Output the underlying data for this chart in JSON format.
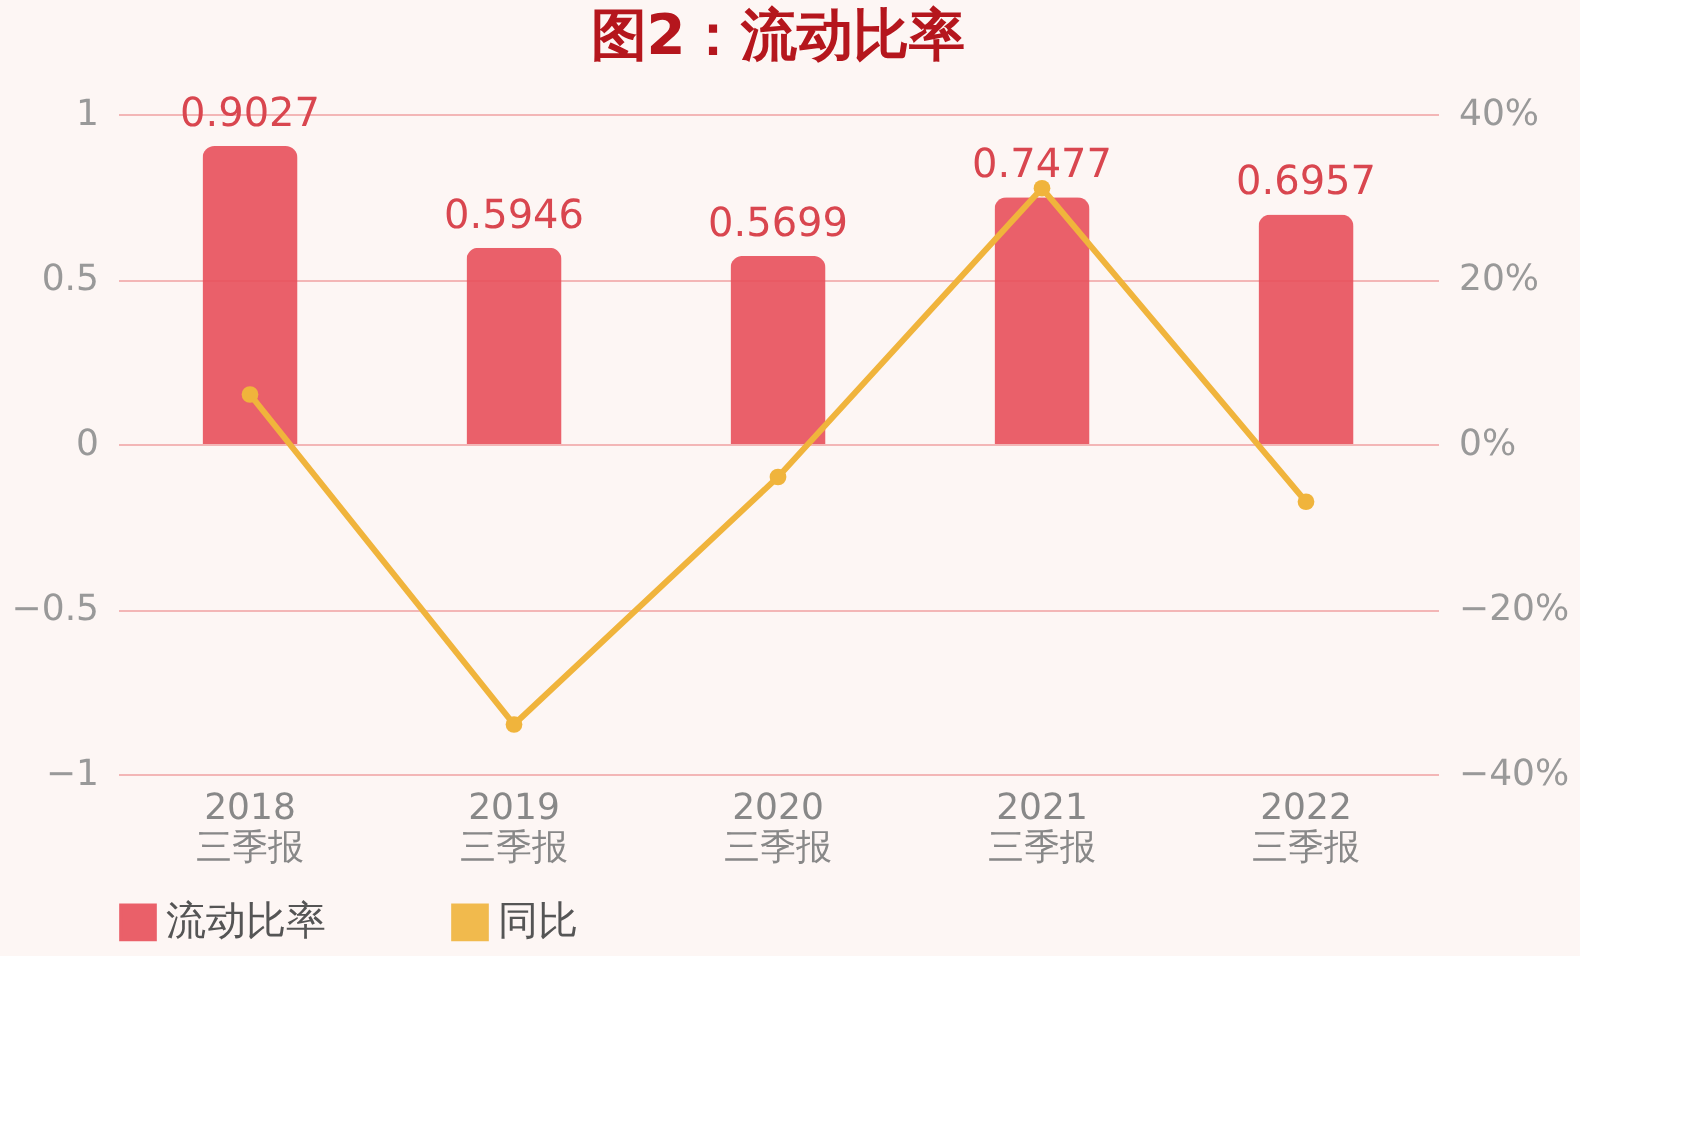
{
  "chart_data": {
    "type": "bar",
    "title": "图2：流动比率",
    "categories": [
      "2018\n三季报",
      "2019\n三季报",
      "2020\n三季报",
      "2021\n三季报",
      "2022\n三季报"
    ],
    "series": [
      {
        "name": "流动比率",
        "color": "#e8505b",
        "values": [
          0.9027,
          0.5946,
          0.5699,
          0.7477,
          0.6957
        ],
        "value_labels": [
          "0.9027",
          "0.5946",
          "0.5699",
          "0.7477",
          "0.6957"
        ]
      },
      {
        "name": "同比",
        "type": "line",
        "axis": "y2",
        "color": "#f0b43c",
        "values": [
          6,
          -34,
          -4,
          31,
          -7
        ]
      }
    ],
    "ylim": [
      -1,
      1
    ],
    "yticks": [
      {
        "value": -1,
        "label": "−1"
      },
      {
        "value": -0.5,
        "label": "−0.5"
      },
      0,
      0.5,
      1
    ],
    "y2lim": [
      -40,
      40
    ],
    "y2ticks": [
      {
        "value": -40,
        "label": "−40%"
      },
      {
        "value": -20,
        "label": "−20%"
      },
      {
        "value": 0,
        "label": "0%"
      },
      {
        "value": 20,
        "label": "20%"
      },
      {
        "value": 40,
        "label": "40%"
      }
    ],
    "grid": "y",
    "legend": "bottom",
    "marker": "circle",
    "line_style": "solid"
  }
}
